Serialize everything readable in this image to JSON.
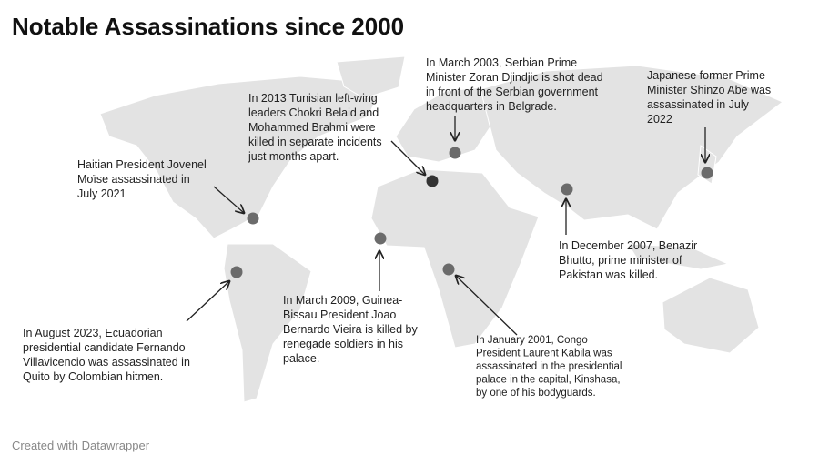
{
  "title": "Notable Assassinations since 2000",
  "annotations": [
    {
      "lines": [
        "Haitian President Jovenel",
        "Moïse assassinated in",
        "July 2021"
      ]
    },
    {
      "lines": [
        "In 2013 Tunisian left-wing",
        "leaders Chokri Belaid and",
        "Mohammed Brahmi were",
        "killed in separate incidents",
        "just months apart."
      ]
    },
    {
      "lines": [
        "In March 2003, Serbian Prime",
        "Minister Zoran Djindjic is shot dead",
        "in front of the Serbian government",
        "headquarters in Belgrade."
      ]
    },
    {
      "lines": [
        "Japanese former Prime",
        "Minister Shinzo Abe was",
        "assassinated in July",
        "2022"
      ]
    },
    {
      "lines": [
        "In December 2007, Benazir",
        "Bhutto, prime minister of",
        "Pakistan was killed."
      ]
    },
    {
      "lines": [
        "In March 2009, Guinea-",
        "Bissau President Joao",
        "Bernardo Vieira is killed by",
        "renegade soldiers in his",
        "palace."
      ]
    },
    {
      "lines": [
        "In January 2001, Congo",
        "President Laurent Kabila was",
        "assassinated in the presidential",
        "palace in the capital, Kinshasa,",
        "by one of his bodyguards."
      ]
    },
    {
      "lines": [
        "In August 2023, Ecuadorian",
        "presidential candidate Fernando",
        "Villavicencio was assassinated in",
        "Quito by Colombian hitmen."
      ]
    }
  ],
  "footer": "Created with Datawrapper"
}
